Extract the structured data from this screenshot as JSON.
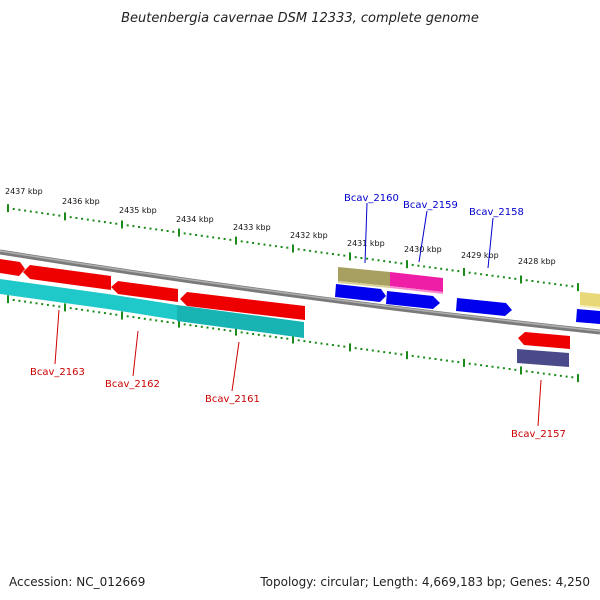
{
  "title": "Beutenbergia cavernae DSM 12333, complete genome",
  "accession_text": "Accession: NC_012669",
  "topology_text": "Topology: circular; Length: 4,669,183 bp; Genes: 4,250",
  "colors": {
    "backbone": "#8c8c8c",
    "tick": "#1a8a1a",
    "label_forward": "#0000cc",
    "label_reverse": "#cc0000"
  },
  "kbp_labels": [
    "2437 kbp",
    "2436 kbp",
    "2435 kbp",
    "2434 kbp",
    "2433 kbp",
    "2432 kbp",
    "2431 kbp",
    "2430 kbp",
    "2429 kbp",
    "2428 kbp"
  ],
  "gene_labels": [
    "Bcav_2160",
    "Bcav_2159",
    "Bcav_2158",
    "Bcav_2163",
    "Bcav_2162",
    "Bcav_2161",
    "Bcav_2157"
  ]
}
